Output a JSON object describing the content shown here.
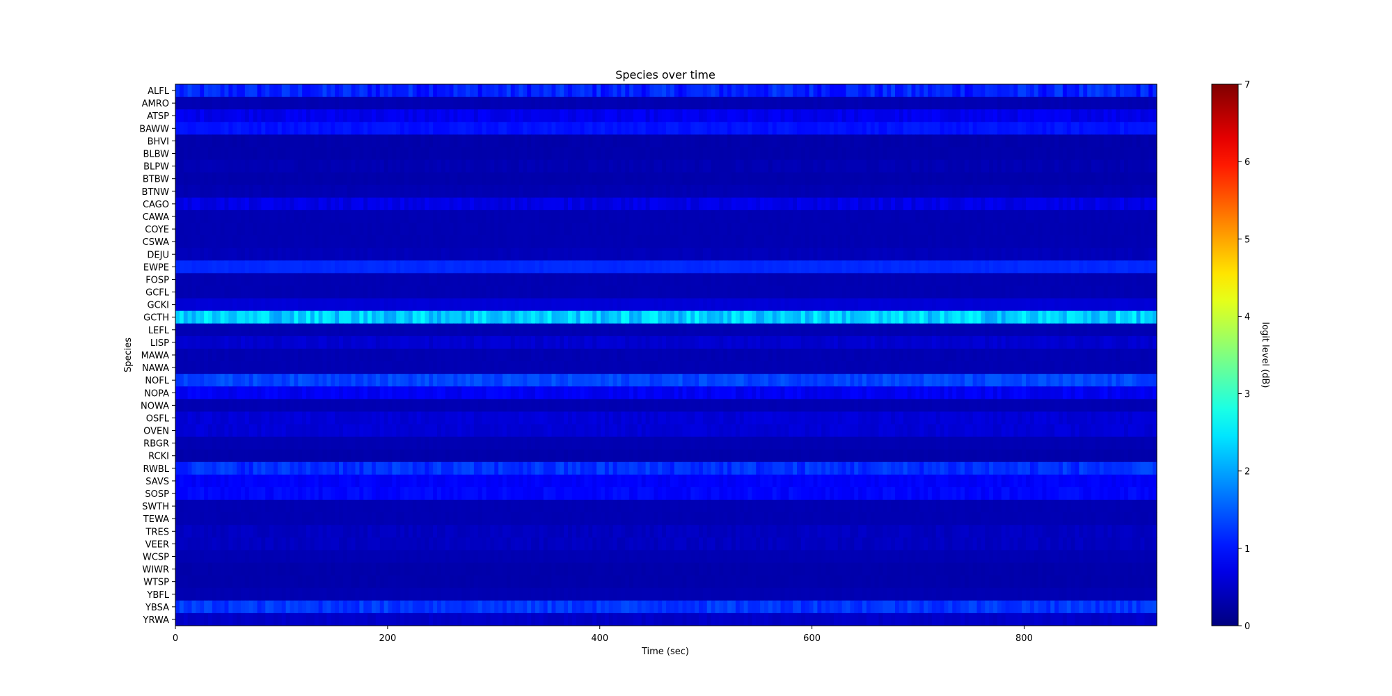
{
  "chart_data": {
    "type": "heatmap",
    "title": "Species over time",
    "xlabel": "Time (sec)",
    "ylabel": "Species",
    "xlim": [
      0,
      925
    ],
    "x_ticks": [
      0,
      200,
      400,
      600,
      800
    ],
    "colorbar": {
      "label": "logit level (dB)",
      "range": [
        0,
        7
      ],
      "ticks": [
        0,
        1,
        2,
        3,
        4,
        5,
        6,
        7
      ],
      "colormap": "jet"
    },
    "species": [
      {
        "name": "ALFL",
        "level": 1.1,
        "variation": 0.25
      },
      {
        "name": "AMRO",
        "level": 0.35,
        "variation": 0.03
      },
      {
        "name": "ATSP",
        "level": 0.75,
        "variation": 0.12
      },
      {
        "name": "BAWW",
        "level": 1.0,
        "variation": 0.08
      },
      {
        "name": "BHVI",
        "level": 0.3,
        "variation": 0.03
      },
      {
        "name": "BLBW",
        "level": 0.3,
        "variation": 0.02
      },
      {
        "name": "BLPW",
        "level": 0.35,
        "variation": 0.05
      },
      {
        "name": "BTBW",
        "level": 0.3,
        "variation": 0.02
      },
      {
        "name": "BTNW",
        "level": 0.35,
        "variation": 0.03
      },
      {
        "name": "CAGO",
        "level": 0.7,
        "variation": 0.12
      },
      {
        "name": "CAWA",
        "level": 0.35,
        "variation": 0.02
      },
      {
        "name": "COYE",
        "level": 0.35,
        "variation": 0.02
      },
      {
        "name": "CSWA",
        "level": 0.35,
        "variation": 0.02
      },
      {
        "name": "DEJU",
        "level": 0.4,
        "variation": 0.04
      },
      {
        "name": "EWPE",
        "level": 1.15,
        "variation": 0.04
      },
      {
        "name": "FOSP",
        "level": 0.35,
        "variation": 0.02
      },
      {
        "name": "GCFL",
        "level": 0.35,
        "variation": 0.02
      },
      {
        "name": "GCKI",
        "level": 0.6,
        "variation": 0.03
      },
      {
        "name": "GCTH",
        "level": 2.3,
        "variation": 0.35
      },
      {
        "name": "LEFL",
        "level": 0.35,
        "variation": 0.02
      },
      {
        "name": "LISP",
        "level": 0.55,
        "variation": 0.08
      },
      {
        "name": "MAWA",
        "level": 0.35,
        "variation": 0.03
      },
      {
        "name": "NAWA",
        "level": 0.35,
        "variation": 0.02
      },
      {
        "name": "NOFL",
        "level": 1.35,
        "variation": 0.15
      },
      {
        "name": "NOPA",
        "level": 0.8,
        "variation": 0.12
      },
      {
        "name": "NOWA",
        "level": 0.35,
        "variation": 0.02
      },
      {
        "name": "OSFL",
        "level": 0.6,
        "variation": 0.08
      },
      {
        "name": "OVEN",
        "level": 0.6,
        "variation": 0.08
      },
      {
        "name": "RBGR",
        "level": 0.35,
        "variation": 0.02
      },
      {
        "name": "RCKI",
        "level": 0.3,
        "variation": 0.02
      },
      {
        "name": "RWBL",
        "level": 1.2,
        "variation": 0.2
      },
      {
        "name": "SAVS",
        "level": 0.85,
        "variation": 0.08
      },
      {
        "name": "SOSP",
        "level": 0.9,
        "variation": 0.1
      },
      {
        "name": "SWTH",
        "level": 0.35,
        "variation": 0.02
      },
      {
        "name": "TEWA",
        "level": 0.35,
        "variation": 0.02
      },
      {
        "name": "TRES",
        "level": 0.45,
        "variation": 0.07
      },
      {
        "name": "VEER",
        "level": 0.45,
        "variation": 0.07
      },
      {
        "name": "WCSP",
        "level": 0.35,
        "variation": 0.02
      },
      {
        "name": "WIWR",
        "level": 0.3,
        "variation": 0.02
      },
      {
        "name": "WTSP",
        "level": 0.3,
        "variation": 0.02
      },
      {
        "name": "YBFL",
        "level": 0.35,
        "variation": 0.02
      },
      {
        "name": "YBSA",
        "level": 1.25,
        "variation": 0.18
      },
      {
        "name": "YRWA",
        "level": 0.5,
        "variation": 0.06
      }
    ]
  }
}
